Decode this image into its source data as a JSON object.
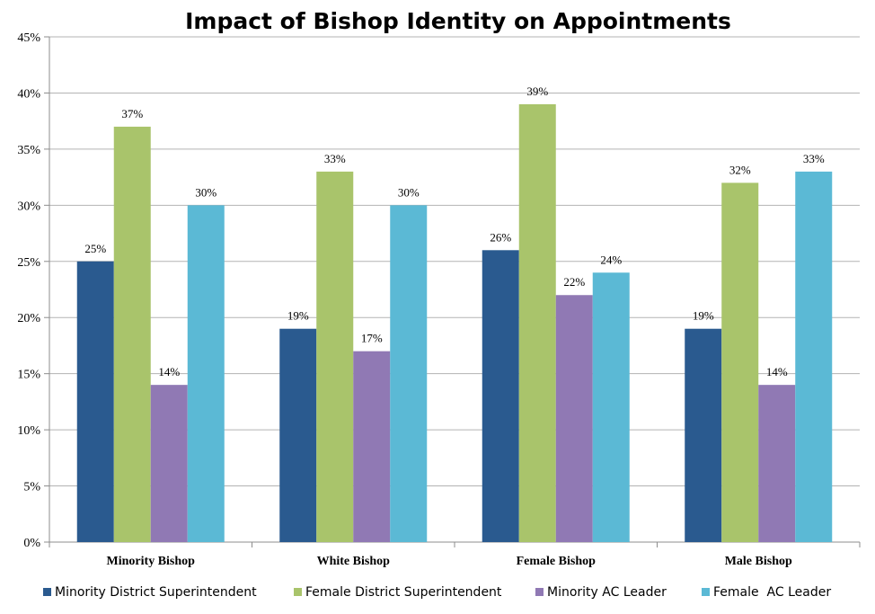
{
  "chart_data": {
    "type": "bar",
    "title": "Impact of Bishop Identity on Appointments",
    "xlabel": "",
    "ylabel": "",
    "ylim": [
      0,
      45
    ],
    "yticks": [
      "0%",
      "5%",
      "10%",
      "15%",
      "20%",
      "25%",
      "30%",
      "35%",
      "40%",
      "45%"
    ],
    "grid": true,
    "legend_position": "bottom",
    "categories": [
      "Minority Bishop",
      "White Bishop",
      "Female Bishop",
      "Male Bishop"
    ],
    "series": [
      {
        "name": "Minority District Superintendent",
        "color": "#2A5A8F",
        "values": [
          25,
          19,
          26,
          19
        ],
        "labels": [
          "25%",
          "19%",
          "26%",
          "19%"
        ]
      },
      {
        "name": "Female District Superintendent",
        "color": "#A9C46B",
        "values": [
          37,
          33,
          39,
          32
        ],
        "labels": [
          "37%",
          "33%",
          "39%",
          "32%"
        ]
      },
      {
        "name": "Minority AC Leader",
        "color": "#9079B4",
        "values": [
          14,
          17,
          22,
          14
        ],
        "labels": [
          "14%",
          "17%",
          "22%",
          "14%"
        ]
      },
      {
        "name": "Female  AC Leader",
        "color": "#5BB9D5",
        "values": [
          30,
          30,
          24,
          33
        ],
        "labels": [
          "30%",
          "30%",
          "24%",
          "33%"
        ]
      }
    ]
  }
}
